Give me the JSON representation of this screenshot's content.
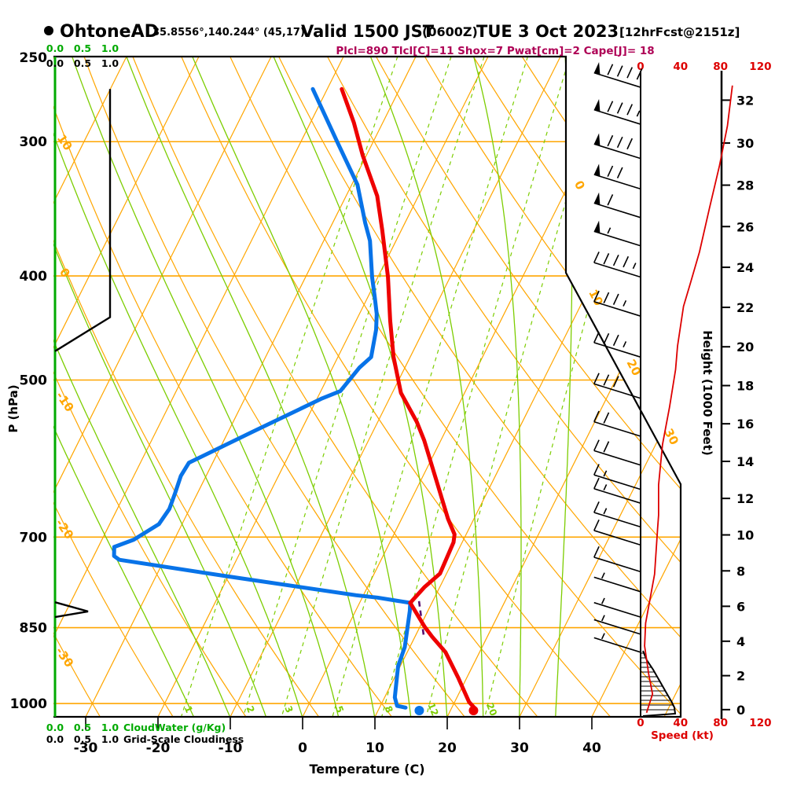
{
  "header": {
    "bullet": "station-dot",
    "station": "OhtoneAD",
    "coords": "35.8556°,140.244° (45,17)",
    "valid": "Valid 1500 JST",
    "zulu": "(0600Z)",
    "date": "TUE 3 Oct 2023",
    "fcst": "[12hrFcst@2151z]",
    "indices": "Plcl=890 Tlcl[C]=11 Shox=7 Pwat[cm]=2 Cape[J]= 18"
  },
  "axes": {
    "pressure_label": "P (hPa)",
    "pressure_ticks": [
      250,
      300,
      400,
      500,
      700,
      850,
      1000
    ],
    "temperature_label": "Temperature (C)",
    "temperature_ticks": [
      -30,
      -20,
      -10,
      0,
      10,
      20,
      30,
      40
    ],
    "height_label": "Height (1000 Feet)",
    "height_ticks_kft": [
      0,
      2,
      4,
      6,
      8,
      10,
      12,
      14,
      16,
      18,
      20,
      22,
      24,
      26,
      28,
      30,
      32
    ],
    "speed_label": "Speed (kt)",
    "speed_ticks_kt": [
      0,
      40,
      80,
      120
    ],
    "cloud_scale_ticks": [
      "0.0",
      "0.5",
      "1.0"
    ],
    "cloudwater_label": "CloudWater (g/Kg)",
    "gridscale_label": "Grid-Scale Cloudiness"
  },
  "colors": {
    "orange": "#FFA600",
    "grid_green": "#7CCD00",
    "axis_green": "#00AA00",
    "temp_red": "#EE0000",
    "speed_red": "#DD0000",
    "dew_blue": "#0873E8",
    "parcel_purple": "#5A1070",
    "indices_magenta": "#AE0055",
    "black": "#000000"
  },
  "chart_data": {
    "type": "line",
    "subtype": "skewt_logp_sounding",
    "title": "OhtoneAD sounding valid 1500 JST (0600Z) TUE 3 Oct 2023",
    "pressure_range_hpa": [
      250,
      1030
    ],
    "grid": {
      "isotherms_c": {
        "from": -80,
        "to": 50,
        "step": 10
      },
      "dry_adiabats_c": {
        "from": -40,
        "to": 130,
        "step": 10
      },
      "moist_adiabats_c": [
        -15,
        -10,
        -5,
        0,
        5,
        10,
        15,
        20,
        25,
        30,
        35
      ],
      "mixing_ratio_g_kg": [
        1,
        2,
        3,
        5,
        8,
        12,
        20
      ],
      "isobar_lines_hpa": [
        300,
        400,
        500,
        700,
        850,
        1000
      ],
      "isotherm_edge_labels_c": [
        0,
        10,
        20,
        30
      ],
      "dry_adiabat_edge_labels_c": [
        10,
        0,
        -10,
        -20,
        -30
      ]
    },
    "temperature_profile_t_p": [
      [
        -38,
        268
      ],
      [
        -34,
        288
      ],
      [
        -30.5,
        309
      ],
      [
        -25.7,
        337
      ],
      [
        -22.6,
        363
      ],
      [
        -18.6,
        401
      ],
      [
        -15.3,
        440
      ],
      [
        -12.3,
        476
      ],
      [
        -8.8,
        514
      ],
      [
        -4.6,
        547
      ],
      [
        -2.3,
        569
      ],
      [
        2.9,
        629
      ],
      [
        6.4,
        673
      ],
      [
        8.4,
        696
      ],
      [
        8.8,
        708
      ],
      [
        9.1,
        757
      ],
      [
        7.9,
        779
      ],
      [
        7.0,
        806
      ],
      [
        10.7,
        849
      ],
      [
        12.4,
        867
      ],
      [
        15.3,
        896
      ],
      [
        18.8,
        946
      ],
      [
        22.0,
        997
      ],
      [
        23.2,
        1010
      ]
    ],
    "dewpoint_profile_t_p": [
      [
        -42,
        268
      ],
      [
        -35,
        300
      ],
      [
        -29.2,
        329
      ],
      [
        -25.5,
        357
      ],
      [
        -23.6,
        371
      ],
      [
        -20.8,
        401
      ],
      [
        -19.1,
        418
      ],
      [
        -17.6,
        434
      ],
      [
        -16.6,
        449
      ],
      [
        -15.4,
        476
      ],
      [
        -16.3,
        487
      ],
      [
        -17.3,
        512
      ],
      [
        -19.3,
        520
      ],
      [
        -26.7,
        559
      ],
      [
        -33.3,
        597
      ],
      [
        -33.5,
        614
      ],
      [
        -33.1,
        637
      ],
      [
        -32.8,
        659
      ],
      [
        -33.2,
        681
      ],
      [
        -35.6,
        704
      ],
      [
        -37.8,
        715
      ],
      [
        -37.2,
        729
      ],
      [
        -36.2,
        735
      ],
      [
        -20.4,
        761
      ],
      [
        -1.0,
        793
      ],
      [
        2.1,
        797
      ],
      [
        7.0,
        806
      ],
      [
        7.5,
        820
      ],
      [
        8.0,
        838
      ],
      [
        9.3,
        886
      ],
      [
        9.7,
        923
      ],
      [
        11.4,
        987
      ],
      [
        12.3,
        1005
      ],
      [
        13.6,
        1009
      ]
    ],
    "surface_dots": {
      "temperature": {
        "t_c": 23.2,
        "p_hpa": 1011
      },
      "dewpoint": {
        "t_c": 15.7,
        "p_hpa": 1011
      }
    },
    "parcel_segment_t_p": [
      [
        8.1,
        803
      ],
      [
        11.1,
        864
      ]
    ],
    "grid_scale_cloudiness_profile_val_p": [
      [
        1.0,
        268
      ],
      [
        1.0,
        437
      ],
      [
        0.0,
        470
      ]
    ],
    "grid_scale_cloudiness_spike_val_p": [
      [
        0.0,
        805
      ],
      [
        0.6,
        821
      ],
      [
        0.0,
        831
      ]
    ],
    "wind_speed_profile_p_kt": [
      [
        266,
        92
      ],
      [
        290,
        87
      ],
      [
        316,
        79
      ],
      [
        346,
        69
      ],
      [
        380,
        59
      ],
      [
        406,
        50
      ],
      [
        427,
        43
      ],
      [
        465,
        37
      ],
      [
        489,
        35
      ],
      [
        530,
        29
      ],
      [
        574,
        22
      ],
      [
        626,
        18
      ],
      [
        668,
        18
      ],
      [
        688,
        17
      ],
      [
        758,
        14
      ],
      [
        842,
        5
      ],
      [
        884,
        4
      ],
      [
        938,
        8
      ],
      [
        980,
        12
      ],
      [
        1020,
        6
      ]
    ],
    "wind_barbs_p_kt": [
      [
        267,
        90
      ],
      [
        289,
        85
      ],
      [
        311,
        80
      ],
      [
        332,
        70
      ],
      [
        353,
        60
      ],
      [
        375,
        55
      ],
      [
        401,
        45
      ],
      [
        436,
        35
      ],
      [
        476,
        35
      ],
      [
        520,
        30
      ],
      [
        564,
        20
      ],
      [
        600,
        20
      ],
      [
        632,
        15
      ],
      [
        651,
        15
      ],
      [
        685,
        15
      ],
      [
        712,
        10
      ],
      [
        754,
        10
      ],
      [
        787,
        5
      ],
      [
        831,
        5
      ],
      [
        862,
        5
      ],
      [
        896,
        5
      ]
    ],
    "speed_wedge_y_extent": [
      [
        828,
        3
      ],
      [
        840,
        8
      ],
      [
        852,
        16
      ],
      [
        866,
        24
      ],
      [
        880,
        32
      ],
      [
        892,
        39
      ],
      [
        900,
        43
      ],
      [
        908,
        44
      ]
    ]
  }
}
